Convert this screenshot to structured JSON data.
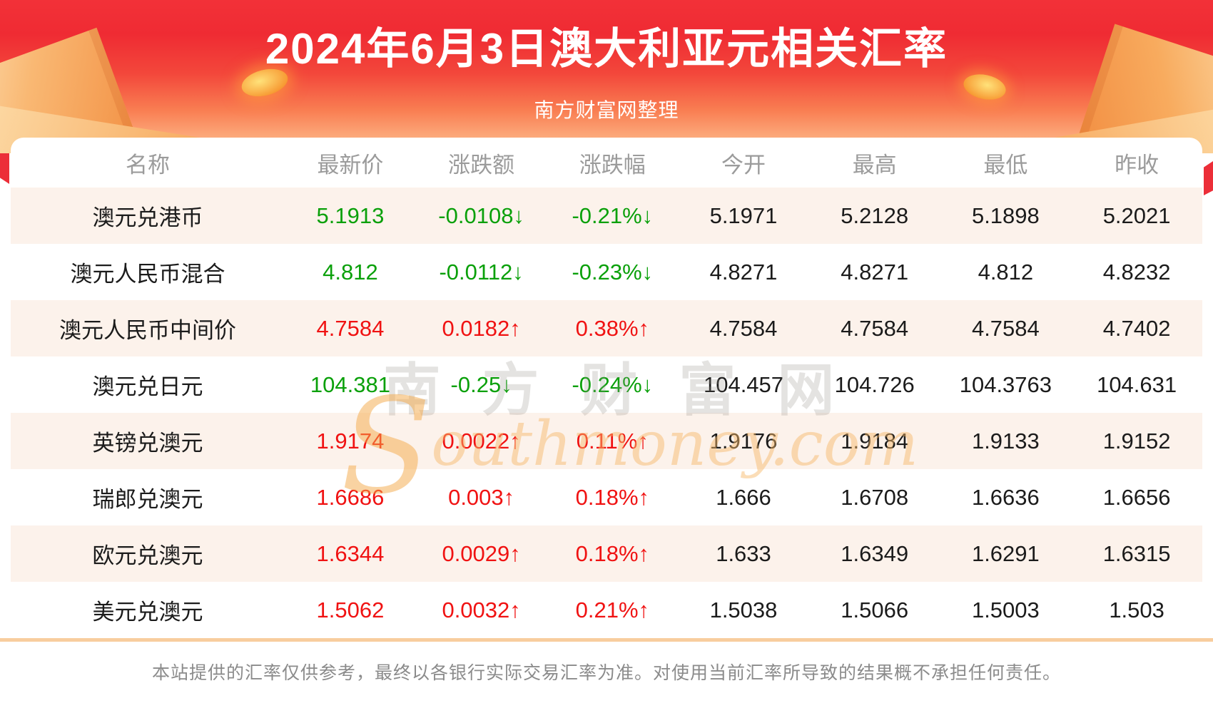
{
  "header": {
    "title": "2024年6月3日澳大利亚元相关汇率",
    "subtitle": "南方财富网整理"
  },
  "table": {
    "columns": [
      "名称",
      "最新价",
      "涨跌额",
      "涨跌幅",
      "今开",
      "最高",
      "最低",
      "昨收"
    ],
    "rows": [
      {
        "name": "澳元兑港币",
        "latest": "5.1913",
        "change": "-0.0108↓",
        "change_pct": "-0.21%↓",
        "open": "5.1971",
        "high": "5.2128",
        "low": "5.1898",
        "prev_close": "5.2021",
        "trend": "down"
      },
      {
        "name": "澳元人民币混合",
        "latest": "4.812",
        "change": "-0.0112↓",
        "change_pct": "-0.23%↓",
        "open": "4.8271",
        "high": "4.8271",
        "low": "4.812",
        "prev_close": "4.8232",
        "trend": "down"
      },
      {
        "name": "澳元人民币中间价",
        "latest": "4.7584",
        "change": "0.0182↑",
        "change_pct": "0.38%↑",
        "open": "4.7584",
        "high": "4.7584",
        "low": "4.7584",
        "prev_close": "4.7402",
        "trend": "up"
      },
      {
        "name": "澳元兑日元",
        "latest": "104.381",
        "change": "-0.25↓",
        "change_pct": "-0.24%↓",
        "open": "104.457",
        "high": "104.726",
        "low": "104.3763",
        "prev_close": "104.631",
        "trend": "down"
      },
      {
        "name": "英镑兑澳元",
        "latest": "1.9174",
        "change": "0.0022↑",
        "change_pct": "0.11%↑",
        "open": "1.9176",
        "high": "1.9184",
        "low": "1.9133",
        "prev_close": "1.9152",
        "trend": "up"
      },
      {
        "name": "瑞郎兑澳元",
        "latest": "1.6686",
        "change": "0.003↑",
        "change_pct": "0.18%↑",
        "open": "1.666",
        "high": "1.6708",
        "low": "1.6636",
        "prev_close": "1.6656",
        "trend": "up"
      },
      {
        "name": "欧元兑澳元",
        "latest": "1.6344",
        "change": "0.0029↑",
        "change_pct": "0.18%↑",
        "open": "1.633",
        "high": "1.6349",
        "low": "1.6291",
        "prev_close": "1.6315",
        "trend": "up"
      },
      {
        "name": "美元兑澳元",
        "latest": "1.5062",
        "change": "0.0032↑",
        "change_pct": "0.21%↑",
        "open": "1.5038",
        "high": "1.5066",
        "low": "1.5003",
        "prev_close": "1.503",
        "trend": "up"
      }
    ]
  },
  "watermark": {
    "cn": "南方财富网",
    "en_initial": "S",
    "en_rest": "outhmoney.com"
  },
  "footer": {
    "disclaimer": "本站提供的汇率仅供参考，最终以各银行实际交易汇率为准。对使用当前汇率所导致的结果概不承担任何责任。"
  },
  "colors": {
    "up": "#f01212",
    "down": "#0aa00a",
    "row_alt": "#fcf2eb",
    "divider": "#f8cd9e",
    "banner_top": "#f23138",
    "banner_bottom": "#fdc193"
  }
}
